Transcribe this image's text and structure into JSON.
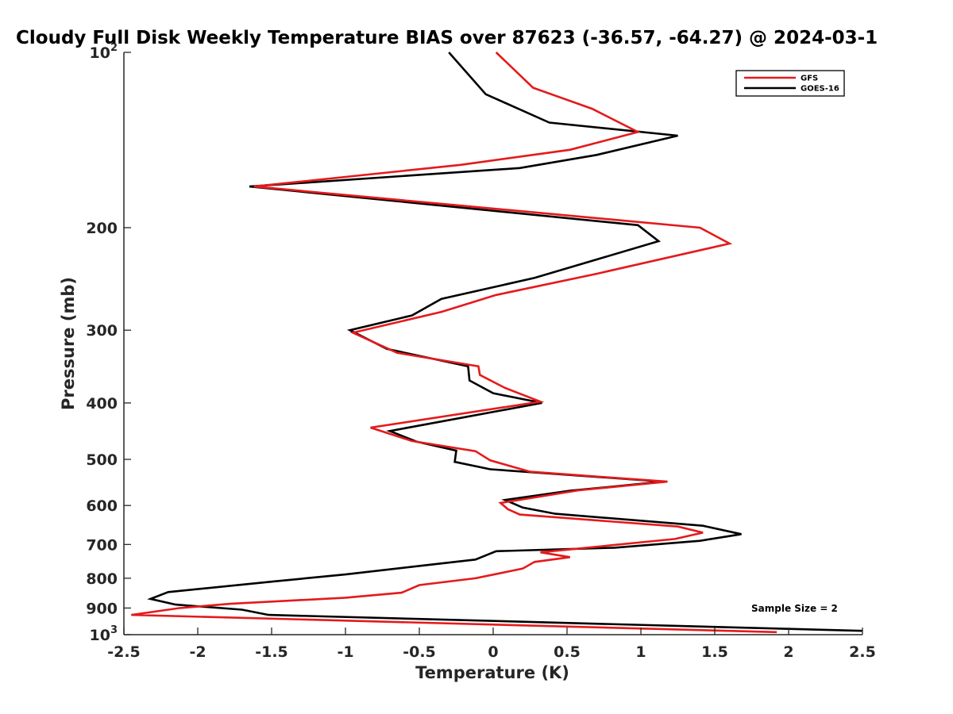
{
  "chart_data": {
    "type": "line",
    "title": "Cloudy Full Disk Weekly Temperature BIAS over 87623 (-36.57, -64.27) @ 2024-03-1",
    "xlabel": "Temperature (K)",
    "ylabel": "Pressure (mb)",
    "xlim": [
      -2.5,
      2.5
    ],
    "ylim": [
      1000,
      100
    ],
    "y_scale": "log",
    "grid": false,
    "legend_position": "top-right",
    "x_ticks": [
      -2.5,
      -2,
      -1.5,
      -1,
      -0.5,
      0,
      0.5,
      1,
      1.5,
      2,
      2.5
    ],
    "x_tick_labels": [
      "-2.5",
      "-2",
      "-1.5",
      "-1",
      "-0.5",
      "0",
      "0.5",
      "1",
      "1.5",
      "2",
      "2.5"
    ],
    "y_ticks": [
      100,
      200,
      300,
      400,
      500,
      600,
      700,
      800,
      900,
      1000
    ],
    "y_tick_labels": [
      {
        "base": "10",
        "exp": "2"
      },
      {
        "base": "200",
        "exp": ""
      },
      {
        "base": "300",
        "exp": ""
      },
      {
        "base": "400",
        "exp": ""
      },
      {
        "base": "500",
        "exp": ""
      },
      {
        "base": "600",
        "exp": ""
      },
      {
        "base": "700",
        "exp": ""
      },
      {
        "base": "800",
        "exp": ""
      },
      {
        "base": "900",
        "exp": ""
      },
      {
        "base": "10",
        "exp": "3"
      }
    ],
    "annotation": "Sample Size = 2",
    "series": [
      {
        "name": "GFS",
        "color": "#e41a1c",
        "points": [
          [
            0.02,
            100
          ],
          [
            0.27,
            115
          ],
          [
            0.67,
            125
          ],
          [
            0.98,
            137
          ],
          [
            0.52,
            147
          ],
          [
            -0.22,
            156
          ],
          [
            -1.62,
            170
          ],
          [
            1.4,
            200
          ],
          [
            1.6,
            213
          ],
          [
            0.7,
            240
          ],
          [
            0.02,
            261
          ],
          [
            -0.35,
            279
          ],
          [
            -0.95,
            303
          ],
          [
            -0.65,
            328
          ],
          [
            -0.1,
            346
          ],
          [
            -0.09,
            358
          ],
          [
            0.08,
            377
          ],
          [
            0.32,
            398
          ],
          [
            -0.83,
            441
          ],
          [
            -0.55,
            465
          ],
          [
            -0.12,
            484
          ],
          [
            -0.02,
            502
          ],
          [
            0.25,
            525
          ],
          [
            1.18,
            546
          ],
          [
            0.58,
            565
          ],
          [
            0.05,
            594
          ],
          [
            0.1,
            609
          ],
          [
            0.18,
            622
          ],
          [
            1.25,
            652
          ],
          [
            1.42,
            668
          ],
          [
            1.23,
            685
          ],
          [
            0.32,
            722
          ],
          [
            0.52,
            736
          ],
          [
            0.28,
            750
          ],
          [
            0.2,
            770
          ],
          [
            -0.12,
            800
          ],
          [
            -0.5,
            822
          ],
          [
            -0.62,
            847
          ],
          [
            -1.0,
            864
          ],
          [
            -1.78,
            885
          ],
          [
            -2.12,
            900
          ],
          [
            -2.45,
            925
          ],
          [
            1.92,
            990
          ]
        ]
      },
      {
        "name": "GOES-16",
        "color": "#000000",
        "points": [
          [
            -0.3,
            100
          ],
          [
            -0.05,
            118
          ],
          [
            0.38,
            132
          ],
          [
            1.25,
            139
          ],
          [
            0.7,
            150
          ],
          [
            0.18,
            158
          ],
          [
            -1.65,
            170
          ],
          [
            0.98,
            198
          ],
          [
            1.12,
            211
          ],
          [
            0.28,
            244
          ],
          [
            -0.35,
            265
          ],
          [
            -0.55,
            283
          ],
          [
            -0.97,
            300
          ],
          [
            -0.72,
            323
          ],
          [
            -0.17,
            346
          ],
          [
            -0.16,
            366
          ],
          [
            0.0,
            385
          ],
          [
            0.33,
            400
          ],
          [
            -0.7,
            447
          ],
          [
            -0.52,
            466
          ],
          [
            -0.25,
            483
          ],
          [
            -0.26,
            505
          ],
          [
            -0.02,
            520
          ],
          [
            1.15,
            546
          ],
          [
            0.52,
            566
          ],
          [
            0.08,
            587
          ],
          [
            0.2,
            605
          ],
          [
            0.42,
            620
          ],
          [
            1.42,
            650
          ],
          [
            1.68,
            672
          ],
          [
            1.4,
            690
          ],
          [
            0.82,
            709
          ],
          [
            0.02,
            719
          ],
          [
            -0.12,
            743
          ],
          [
            -0.52,
            763
          ],
          [
            -1.0,
            788
          ],
          [
            -1.48,
            810
          ],
          [
            -2.2,
            845
          ],
          [
            -2.32,
            868
          ],
          [
            -2.15,
            888
          ],
          [
            -1.7,
            906
          ],
          [
            -1.52,
            925
          ],
          [
            2.5,
            985
          ]
        ]
      }
    ]
  }
}
